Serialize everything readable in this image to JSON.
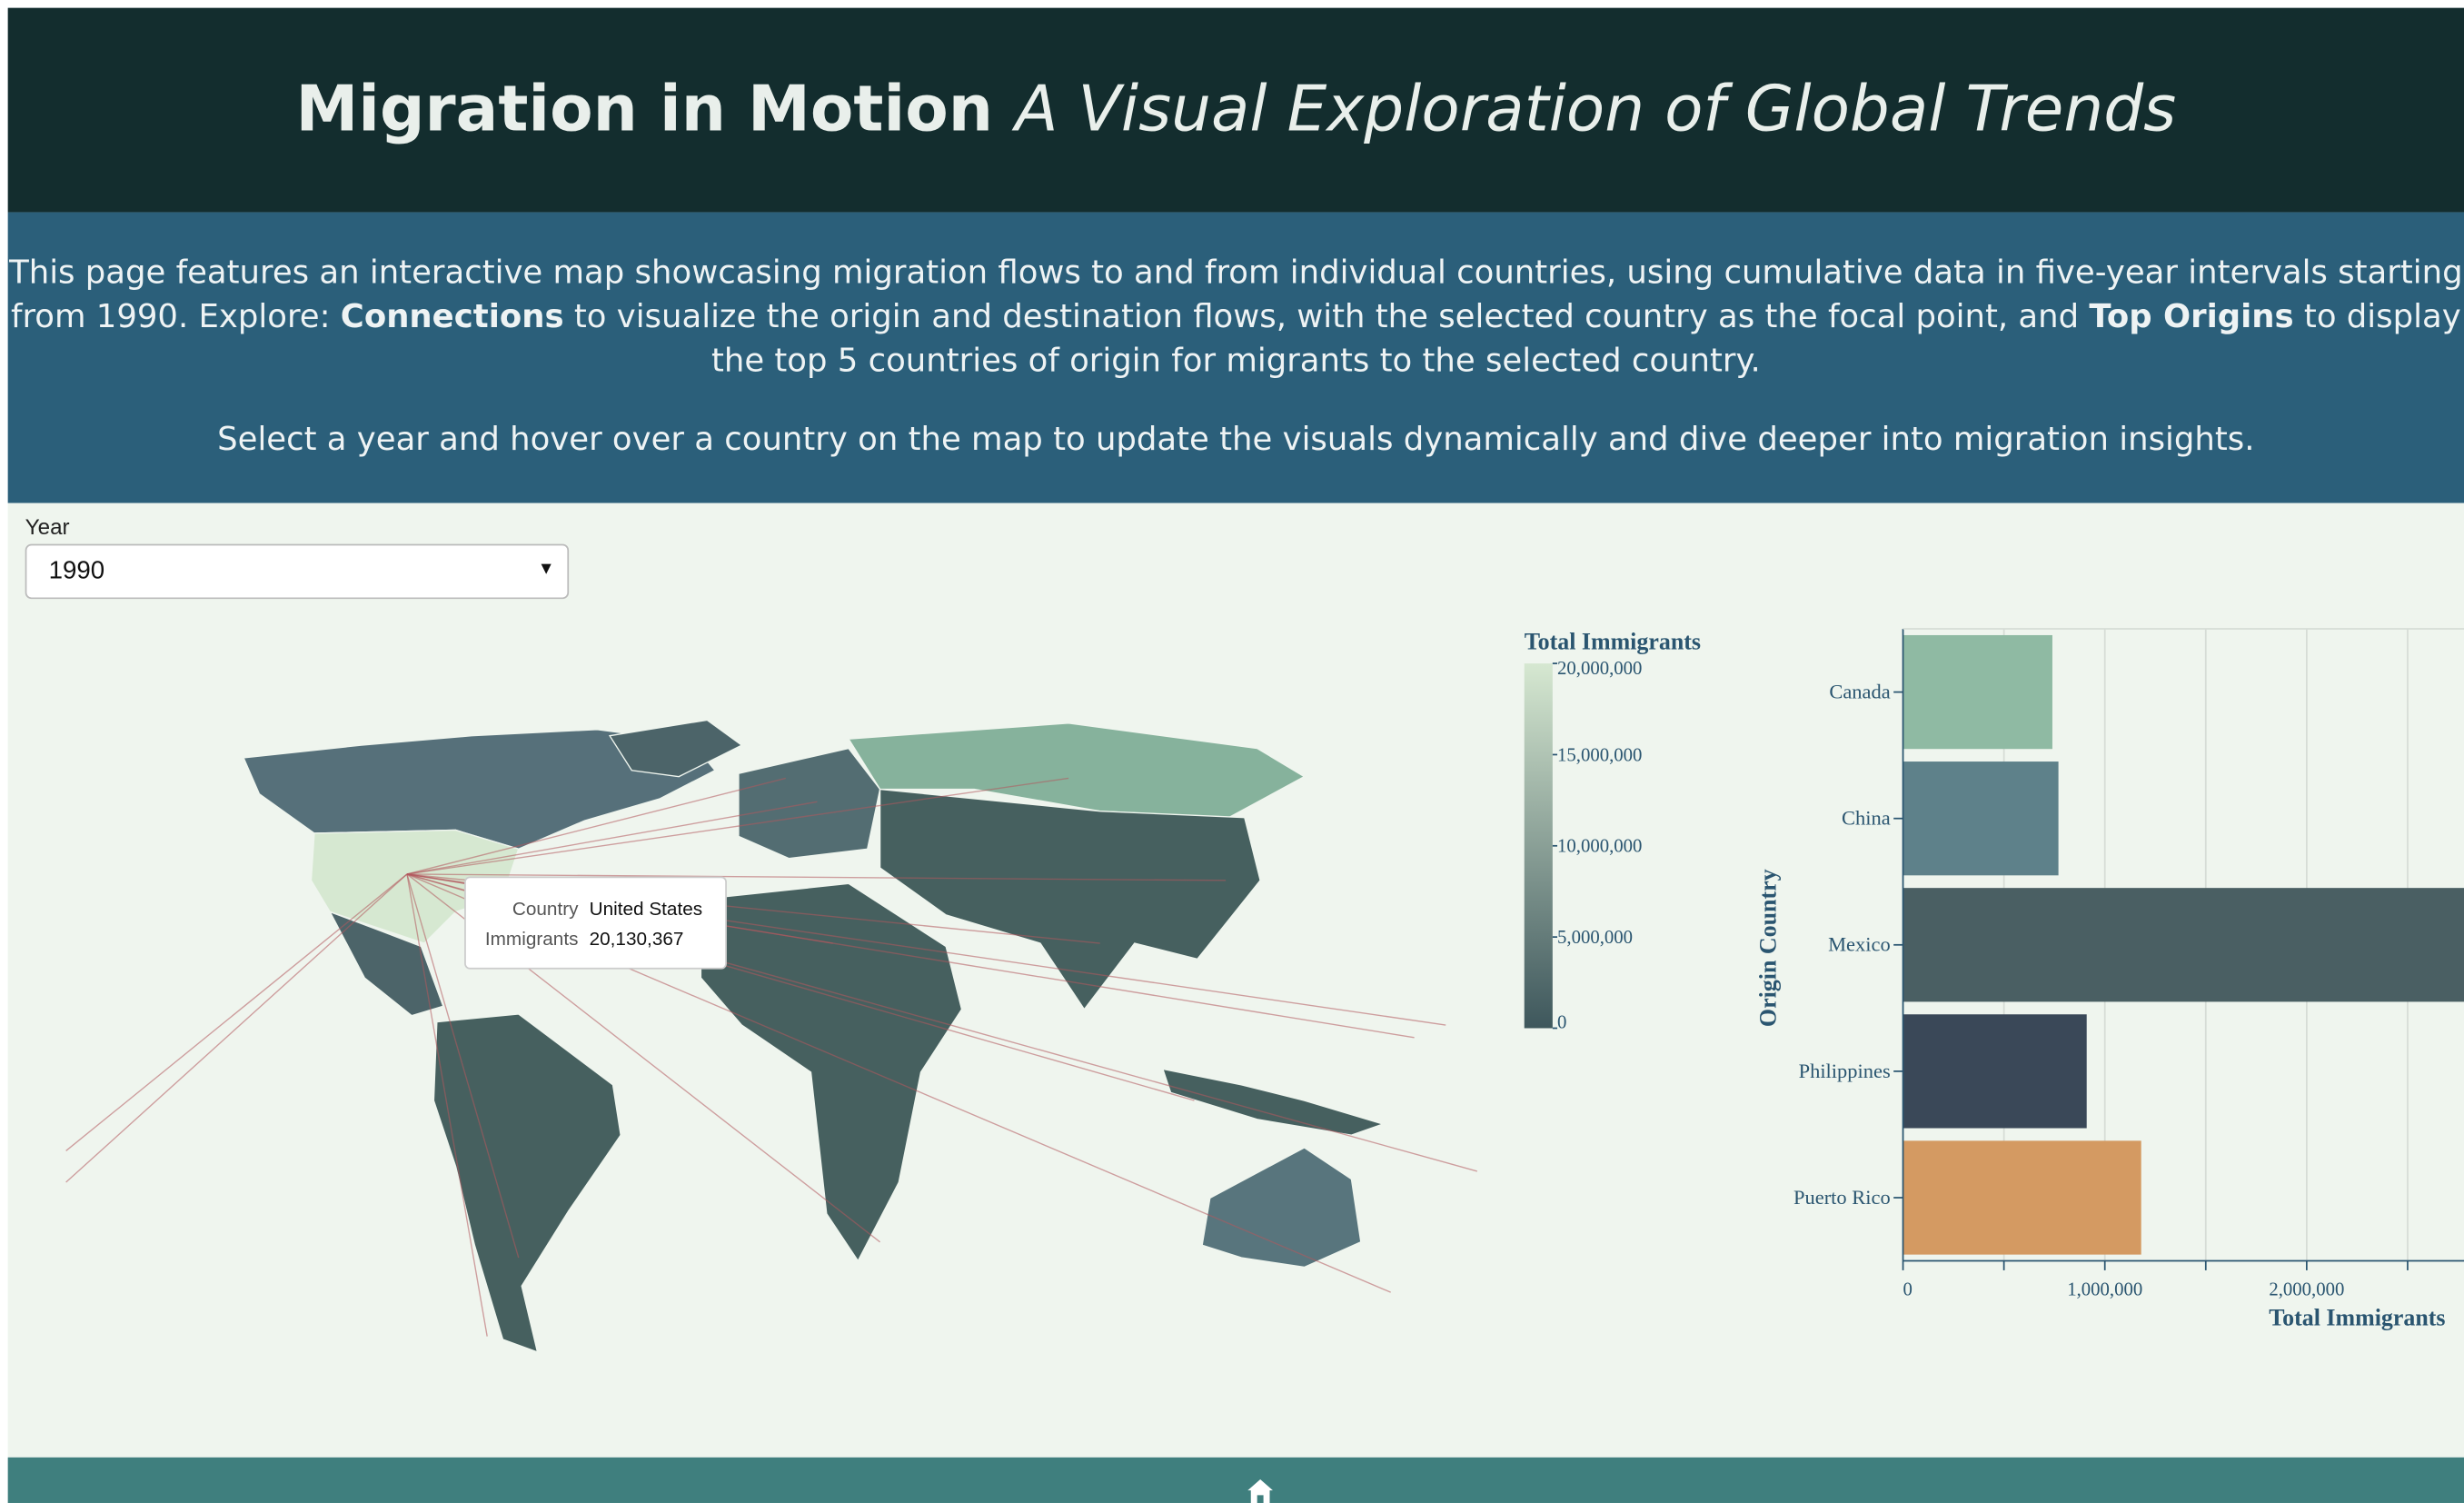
{
  "header": {
    "title": "Migration in Motion",
    "subtitle": "A Visual Exploration of Global Trends"
  },
  "intro": {
    "paragraph": [
      "This page features an interactive map showcasing migration flows to and from individual countries, using cumulative data in five-year intervals starting from 1990. Explore: ",
      "Connections",
      " to visualize the origin and destination flows, with the selected country as the focal point, and ",
      "Top Origins",
      " to display the top 5 countries of origin for migrants to the selected country."
    ],
    "instruction": "Select a year and hover over a country on the map to update the visuals dynamically and dive deeper into migration insights."
  },
  "controls": {
    "year_label": "Year",
    "year": "1990"
  },
  "map": {
    "tooltip": {
      "country_name": "Country",
      "country": "United States",
      "value_name": "Immigrants",
      "value": 20130367,
      "value_label": "20,130,367"
    }
  },
  "legend": {
    "title": "Total Immigrants",
    "lim": [
      0,
      20000000
    ],
    "ticks": [
      0,
      {
        "value": 5000000,
        "label": "5,000,000"
      },
      {
        "value": 10000000,
        "label": "10,000,000"
      },
      {
        "value": 15000000,
        "label": "15,000,000"
      },
      {
        "value": 20000000,
        "label": "20,000,000"
      }
    ],
    "colors": [
      "#3e575c",
      "#d6e8d1"
    ]
  },
  "chart_data": {
    "type": "bar",
    "orientation": "horizontal",
    "categories": [
      "Canada",
      "China",
      "Mexico",
      "Philippines",
      "Puerto Rico"
    ],
    "values": [
      740000,
      770000,
      4300000,
      910000,
      1180000
    ],
    "colors": [
      "#8fbaa3",
      "#5e818a",
      "#4a5f63",
      "#3a4858",
      "#d49a62"
    ],
    "xlim": [
      0,
      4500000
    ],
    "xticks": [
      0,
      {
        "value": 1000000,
        "label": "1,000,000"
      },
      {
        "value": 2000000,
        "label": "2,000,000"
      }
    ],
    "xminorticks": [
      500000,
      1500000,
      2500000
    ],
    "xlabel": "Total Immigrants",
    "ylabel": "Origin Country",
    "grid": true
  }
}
